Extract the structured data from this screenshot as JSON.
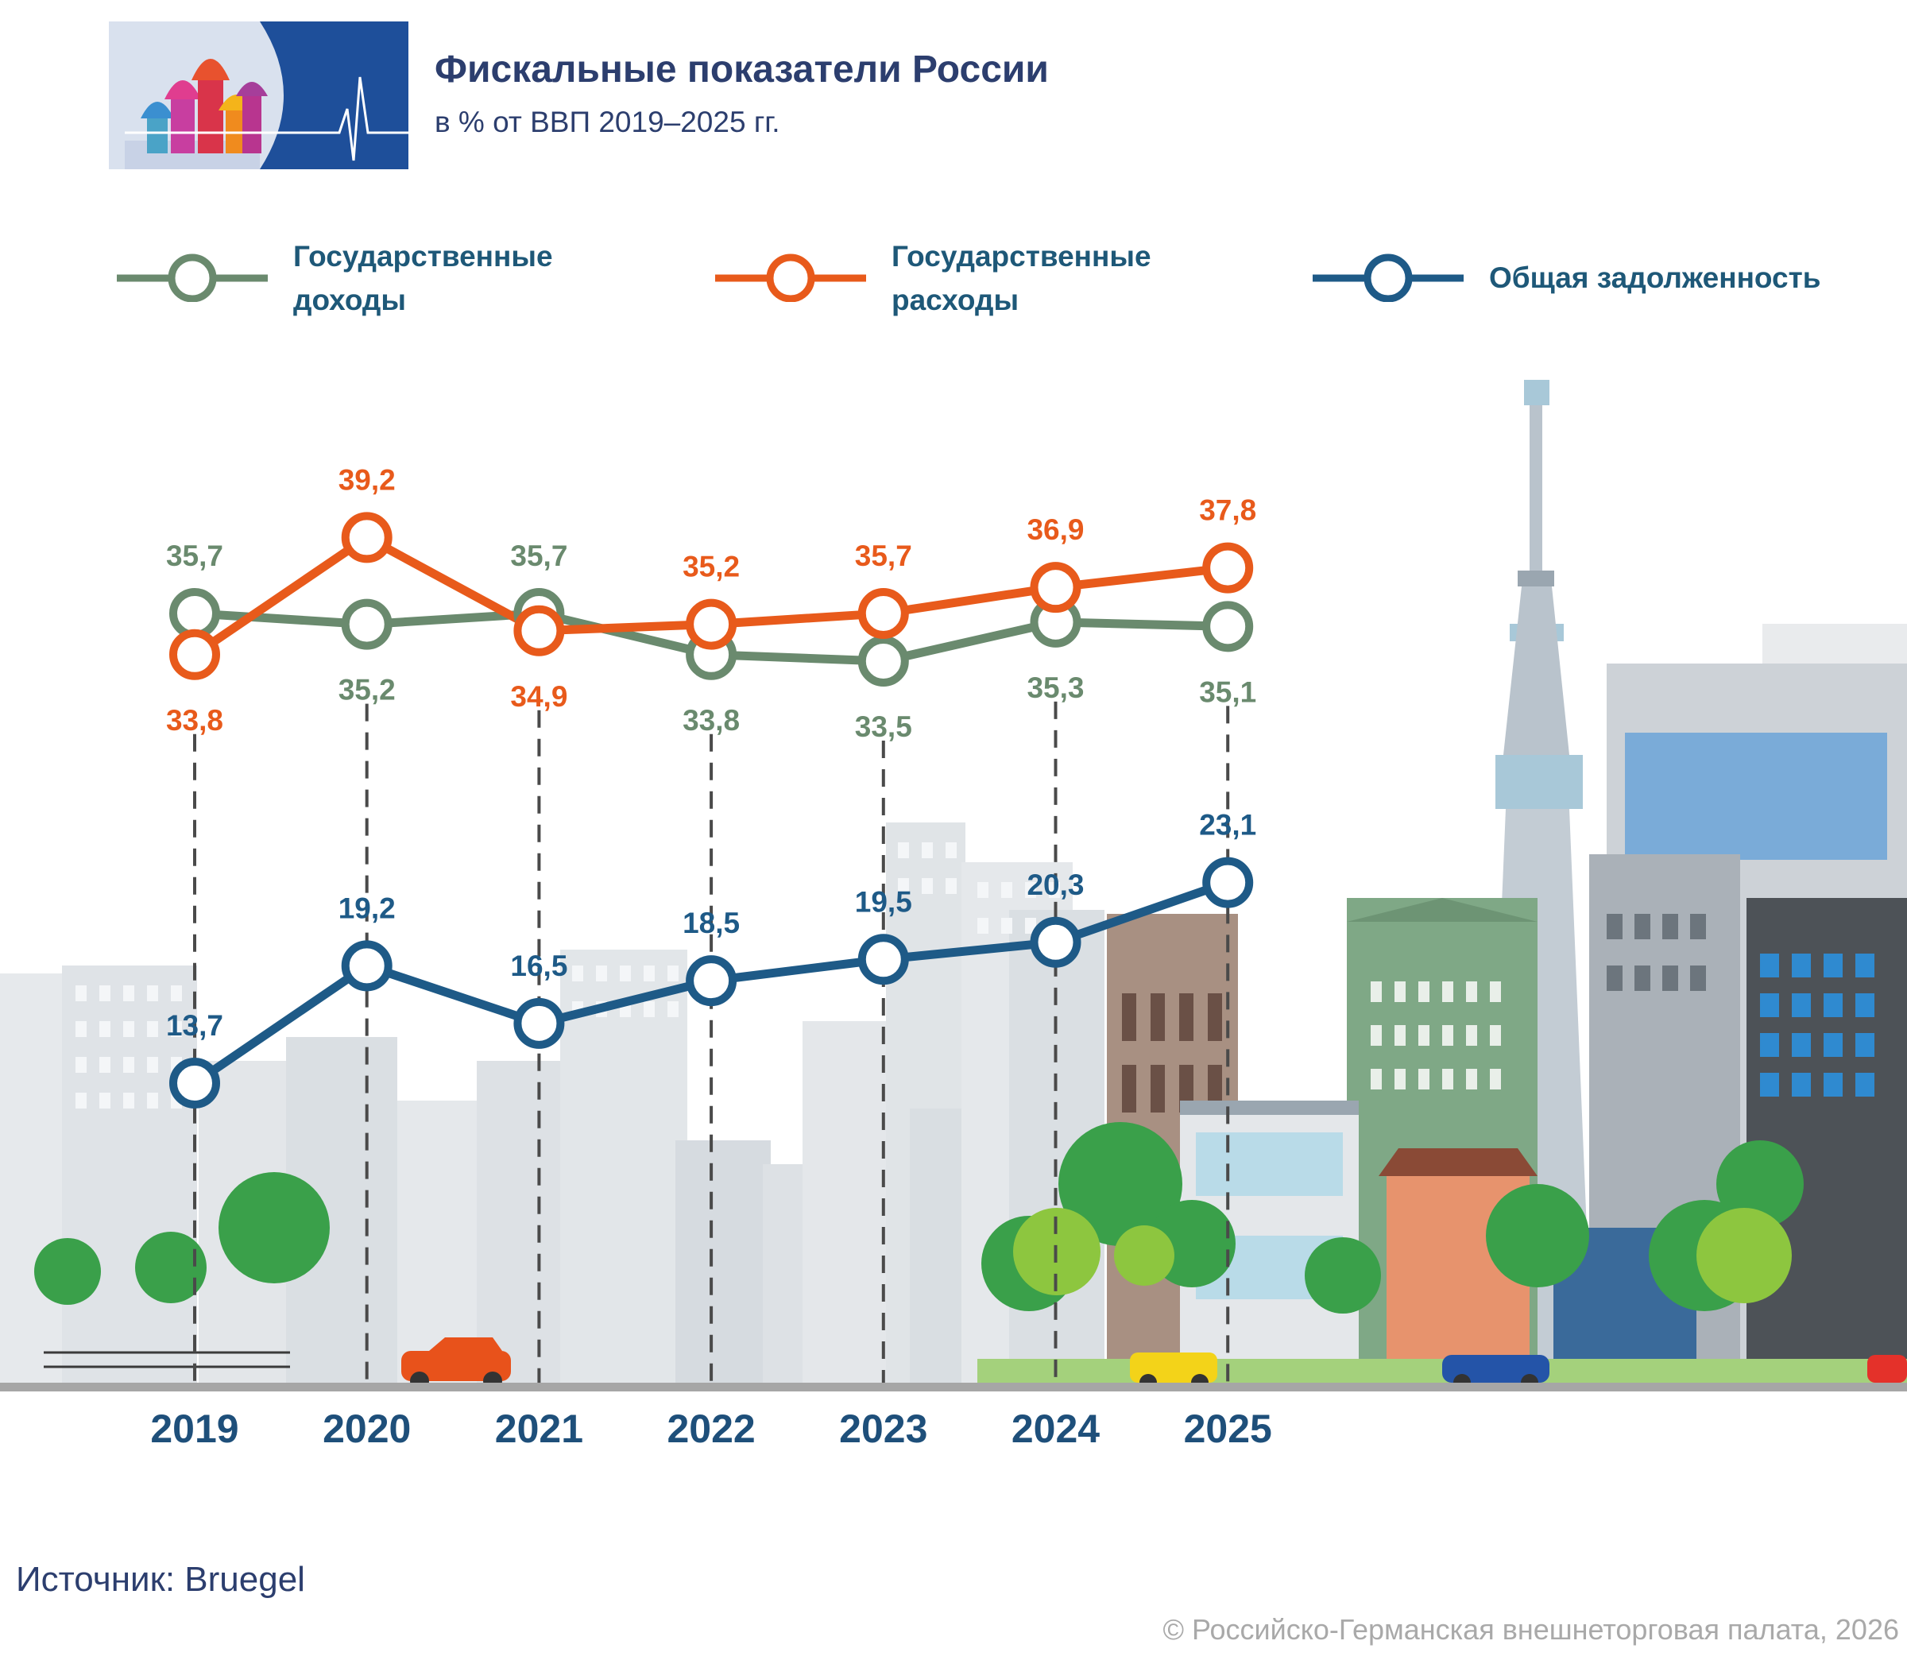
{
  "header": {
    "title": "Фискальные показатели России",
    "subtitle": "в % от ВВП 2019–2025 гг."
  },
  "legend": [
    {
      "label_line1": "Государственные",
      "label_line2": "доходы",
      "color": "#6a8a6e"
    },
    {
      "label_line1": "Государственные",
      "label_line2": "расходы",
      "color": "#e85a1b"
    },
    {
      "label_line1": "Общая задолженность",
      "label_line2": "",
      "color": "#1e5a87"
    }
  ],
  "chart_data": {
    "type": "line",
    "categories": [
      "2019",
      "2020",
      "2021",
      "2022",
      "2023",
      "2024",
      "2025"
    ],
    "series": [
      {
        "name": "Государственные доходы",
        "values": [
          35.7,
          35.2,
          35.7,
          33.8,
          33.5,
          35.3,
          35.1
        ],
        "labels": [
          "35,7",
          "35,2",
          "35,7",
          "33,8",
          "33,5",
          "35,3",
          "35,1"
        ],
        "color": "#6a8a6e"
      },
      {
        "name": "Государственные расходы",
        "values": [
          33.8,
          39.2,
          34.9,
          35.2,
          35.7,
          36.9,
          37.8
        ],
        "labels": [
          "33,8",
          "39,2",
          "34,9",
          "35,2",
          "35,7",
          "36,9",
          "37,8"
        ],
        "color": "#e85a1b"
      },
      {
        "name": "Общая задолженность",
        "values": [
          13.7,
          19.2,
          16.5,
          18.5,
          19.5,
          20.3,
          23.1
        ],
        "labels": [
          "13,7",
          "19,2",
          "16,5",
          "18,5",
          "19,5",
          "20,3",
          "23,1"
        ],
        "color": "#1e5a87"
      }
    ],
    "grid": false,
    "legend_position": "top"
  },
  "footer": {
    "source": "Источник: Bruegel",
    "copyright": "© Российско-Германская внешнеторговая палата, 2026"
  }
}
